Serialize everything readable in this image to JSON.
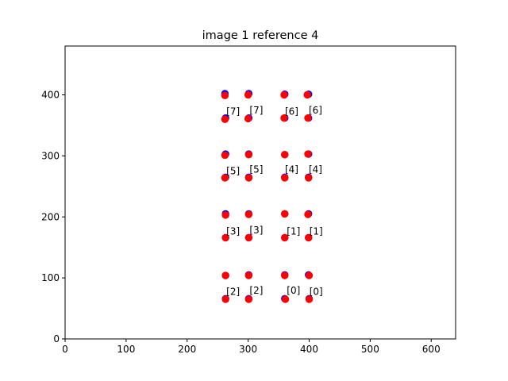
{
  "chart_data": {
    "type": "scatter",
    "title": "image 1 reference 4",
    "xlabel": "",
    "ylabel": "",
    "xlim": [
      0,
      640
    ],
    "ylim": [
      0,
      480
    ],
    "xticks": [
      0,
      100,
      200,
      300,
      400,
      500,
      600
    ],
    "yticks": [
      0,
      100,
      200,
      300,
      400
    ],
    "xtick_labels": [
      "0",
      "100",
      "200",
      "300",
      "400",
      "500",
      "600"
    ],
    "ytick_labels": [
      "0",
      "100",
      "200",
      "300",
      "400"
    ],
    "grid": false,
    "series": [
      {
        "color": "#0000ff",
        "points": [
          {
            "x": 262,
            "y": 402
          },
          {
            "x": 301,
            "y": 402
          },
          {
            "x": 360,
            "y": 401
          },
          {
            "x": 399,
            "y": 401
          },
          {
            "x": 263,
            "y": 362
          },
          {
            "x": 301,
            "y": 362
          },
          {
            "x": 360,
            "y": 362
          },
          {
            "x": 399,
            "y": 362
          },
          {
            "x": 263,
            "y": 303
          },
          {
            "x": 301,
            "y": 303
          },
          {
            "x": 360,
            "y": 302
          },
          {
            "x": 399,
            "y": 303
          },
          {
            "x": 263,
            "y": 265
          },
          {
            "x": 301,
            "y": 265
          },
          {
            "x": 360,
            "y": 265
          },
          {
            "x": 399,
            "y": 265
          },
          {
            "x": 263,
            "y": 205
          },
          {
            "x": 301,
            "y": 205
          },
          {
            "x": 360,
            "y": 205
          },
          {
            "x": 399,
            "y": 205
          },
          {
            "x": 263,
            "y": 166
          },
          {
            "x": 301,
            "y": 166
          },
          {
            "x": 360,
            "y": 166
          },
          {
            "x": 399,
            "y": 166
          },
          {
            "x": 263,
            "y": 104
          },
          {
            "x": 301,
            "y": 105
          },
          {
            "x": 360,
            "y": 105
          },
          {
            "x": 399,
            "y": 105
          },
          {
            "x": 263,
            "y": 66
          },
          {
            "x": 301,
            "y": 66
          },
          {
            "x": 360,
            "y": 66
          },
          {
            "x": 400,
            "y": 66
          }
        ]
      },
      {
        "color": "#ff0000",
        "points": [
          {
            "x": 262,
            "y": 399
          },
          {
            "x": 300,
            "y": 400
          },
          {
            "x": 359,
            "y": 400
          },
          {
            "x": 397,
            "y": 400
          },
          {
            "x": 262,
            "y": 360
          },
          {
            "x": 300,
            "y": 361
          },
          {
            "x": 359,
            "y": 362
          },
          {
            "x": 398,
            "y": 362
          },
          {
            "x": 262,
            "y": 301
          },
          {
            "x": 301,
            "y": 302
          },
          {
            "x": 360,
            "y": 302
          },
          {
            "x": 398,
            "y": 303
          },
          {
            "x": 262,
            "y": 264
          },
          {
            "x": 301,
            "y": 264
          },
          {
            "x": 360,
            "y": 264
          },
          {
            "x": 399,
            "y": 264
          },
          {
            "x": 263,
            "y": 203
          },
          {
            "x": 301,
            "y": 204
          },
          {
            "x": 360,
            "y": 205
          },
          {
            "x": 398,
            "y": 204
          },
          {
            "x": 263,
            "y": 166
          },
          {
            "x": 301,
            "y": 166
          },
          {
            "x": 360,
            "y": 166
          },
          {
            "x": 399,
            "y": 166
          },
          {
            "x": 263,
            "y": 104
          },
          {
            "x": 301,
            "y": 104
          },
          {
            "x": 360,
            "y": 104
          },
          {
            "x": 400,
            "y": 104
          },
          {
            "x": 263,
            "y": 65
          },
          {
            "x": 301,
            "y": 65
          },
          {
            "x": 361,
            "y": 65
          },
          {
            "x": 400,
            "y": 65
          }
        ]
      }
    ],
    "annotations": [
      {
        "x": 263,
        "y": 362,
        "text": "[7]"
      },
      {
        "x": 301,
        "y": 364,
        "text": "[7]"
      },
      {
        "x": 359,
        "y": 362,
        "text": "[6]"
      },
      {
        "x": 398,
        "y": 364,
        "text": "[6]"
      },
      {
        "x": 263,
        "y": 265,
        "text": "[5]"
      },
      {
        "x": 301,
        "y": 267,
        "text": "[5]"
      },
      {
        "x": 359,
        "y": 267,
        "text": "[4]"
      },
      {
        "x": 398,
        "y": 267,
        "text": "[4]"
      },
      {
        "x": 263,
        "y": 166,
        "text": "[3]"
      },
      {
        "x": 301,
        "y": 168,
        "text": "[3]"
      },
      {
        "x": 362,
        "y": 166,
        "text": "[1]"
      },
      {
        "x": 399,
        "y": 166,
        "text": "[1]"
      },
      {
        "x": 263,
        "y": 67,
        "text": "[2]"
      },
      {
        "x": 301,
        "y": 69,
        "text": "[2]"
      },
      {
        "x": 362,
        "y": 69,
        "text": "[0]"
      },
      {
        "x": 399,
        "y": 67,
        "text": "[0]"
      }
    ]
  }
}
